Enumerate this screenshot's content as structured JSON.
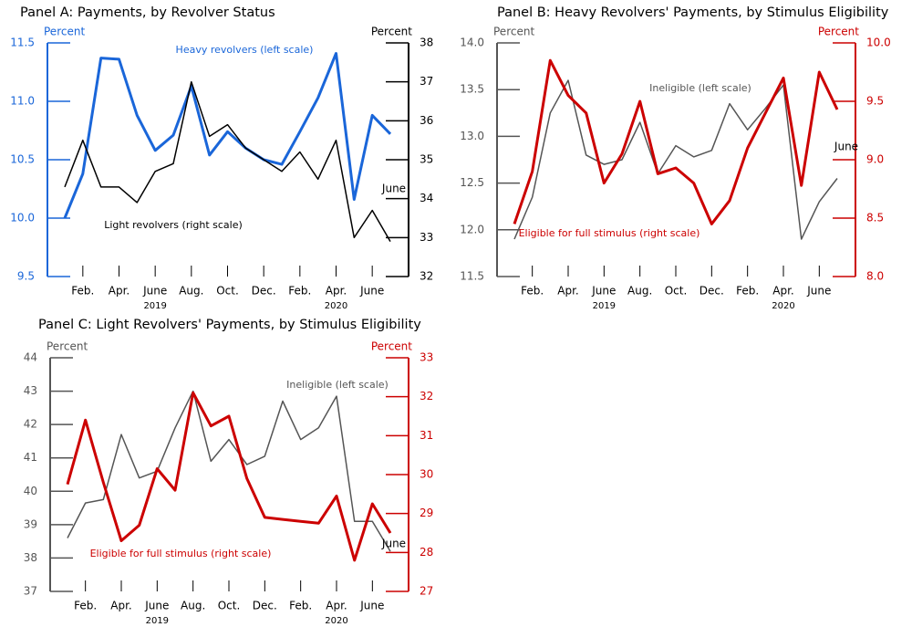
{
  "chart_data": [
    {
      "type": "line",
      "title": "Panel A: Payments, by Revolver Status",
      "categories": [
        null,
        "Feb.",
        null,
        "Apr.",
        null,
        "June",
        null,
        "Aug.",
        null,
        "Oct.",
        null,
        "Dec.",
        null,
        "Feb.",
        null,
        "Apr.",
        null,
        "June",
        null
      ],
      "years": [
        "2019",
        "2020"
      ],
      "y_label": "Percent",
      "y2_label": "Percent",
      "y_color": "#1a66d9",
      "y2_color": "#000000",
      "ylim": [
        9.5,
        11.5
      ],
      "yticks": [
        9.5,
        {
          "value": 10.0,
          "label": "10.0"
        },
        10.5,
        {
          "value": 11.0,
          "label": "11.0"
        },
        11.5
      ],
      "y2lim": [
        32,
        38
      ],
      "y2ticks": [
        32,
        33,
        34,
        35,
        36,
        37,
        38
      ],
      "annotations": [
        "June"
      ],
      "series": [
        {
          "name": "Heavy revolvers (left scale)",
          "color": "#1a66d9",
          "axis": "y",
          "values": [
            10.0,
            10.38,
            11.37,
            11.36,
            10.88,
            10.58,
            10.71,
            11.13,
            10.54,
            10.74,
            10.6,
            10.5,
            10.46,
            10.74,
            11.03,
            11.41,
            10.16,
            10.88,
            10.72
          ]
        },
        {
          "name": "Light revolvers (right scale)",
          "color": "#000000",
          "axis": "y2",
          "values": [
            34.3,
            35.5,
            34.3,
            34.3,
            33.9,
            34.7,
            34.9,
            37.0,
            35.6,
            35.9,
            35.3,
            35.0,
            34.7,
            35.2,
            34.5,
            35.5,
            33.0,
            33.7,
            32.9
          ]
        }
      ]
    },
    {
      "type": "line",
      "title": "Panel B: Heavy Revolvers' Payments, by Stimulus Eligibility",
      "categories": [
        null,
        "Feb.",
        null,
        "Apr.",
        null,
        "June",
        null,
        "Aug.",
        null,
        "Oct.",
        null,
        "Dec.",
        null,
        "Feb.",
        null,
        "Apr.",
        null,
        "June",
        null
      ],
      "years": [
        "2019",
        "2020"
      ],
      "y_label": "Percent",
      "y2_label": "Percent",
      "y_color": "#555555",
      "y2_color": "#cc0000",
      "ylim": [
        11.5,
        14.0
      ],
      "yticks": [
        11.5,
        {
          "value": 12.0,
          "label": "12.0"
        },
        12.5,
        {
          "value": 13.0,
          "label": "13.0"
        },
        13.5,
        {
          "value": 14.0,
          "label": "14.0"
        }
      ],
      "y2lim": [
        8.0,
        10.0
      ],
      "y2ticks": [
        {
          "value": 8.0,
          "label": "8.0"
        },
        8.5,
        {
          "value": 9.0,
          "label": "9.0"
        },
        9.5,
        {
          "value": 10.0,
          "label": "10.0"
        }
      ],
      "annotations": [
        "June"
      ],
      "series": [
        {
          "name": "Ineligible (left scale)",
          "color": "#555555",
          "axis": "y",
          "values": [
            11.9,
            12.35,
            13.25,
            13.6,
            12.8,
            12.7,
            12.75,
            13.15,
            12.6,
            12.9,
            12.78,
            12.85,
            13.35,
            13.07,
            13.3,
            13.55,
            11.9,
            12.3,
            12.55
          ]
        },
        {
          "name": "Eligible for full stimulus (right scale)",
          "color": "#cc0000",
          "axis": "y2",
          "values": [
            8.45,
            8.9,
            9.85,
            9.55,
            9.4,
            8.8,
            9.05,
            9.5,
            8.88,
            8.93,
            8.8,
            8.45,
            8.65,
            9.1,
            9.4,
            9.7,
            8.78,
            9.75,
            9.43
          ]
        }
      ]
    },
    {
      "type": "line",
      "title": "Panel C: Light Revolvers' Payments, by Stimulus Eligibility",
      "categories": [
        null,
        "Feb.",
        null,
        "Apr.",
        null,
        "June",
        null,
        "Aug.",
        null,
        "Oct.",
        null,
        "Dec.",
        null,
        "Feb.",
        null,
        "Apr.",
        null,
        "June",
        null
      ],
      "years": [
        "2019",
        "2020"
      ],
      "y_label": "Percent",
      "y2_label": "Percent",
      "y_color": "#555555",
      "y2_color": "#cc0000",
      "ylim": [
        37,
        44
      ],
      "yticks": [
        37,
        38,
        39,
        40,
        41,
        42,
        43,
        44
      ],
      "y2lim": [
        27,
        33
      ],
      "y2ticks": [
        27,
        28,
        29,
        30,
        31,
        32,
        33
      ],
      "annotations": [
        "June"
      ],
      "series": [
        {
          "name": "Ineligible (left scale)",
          "color": "#555555",
          "axis": "y",
          "values": [
            38.6,
            39.65,
            39.75,
            41.7,
            40.4,
            40.6,
            41.9,
            43.0,
            40.9,
            41.55,
            40.8,
            41.05,
            42.7,
            41.55,
            41.9,
            42.85,
            39.1,
            39.1,
            38.2
          ]
        },
        {
          "name": "Eligible for full stimulus (right scale)",
          "color": "#cc0000",
          "axis": "y2",
          "values": [
            29.75,
            31.4,
            29.8,
            28.3,
            28.7,
            30.15,
            29.6,
            32.1,
            31.25,
            31.5,
            29.9,
            28.9,
            28.85,
            28.8,
            28.75,
            29.45,
            27.8,
            29.25,
            28.5
          ]
        }
      ]
    }
  ]
}
